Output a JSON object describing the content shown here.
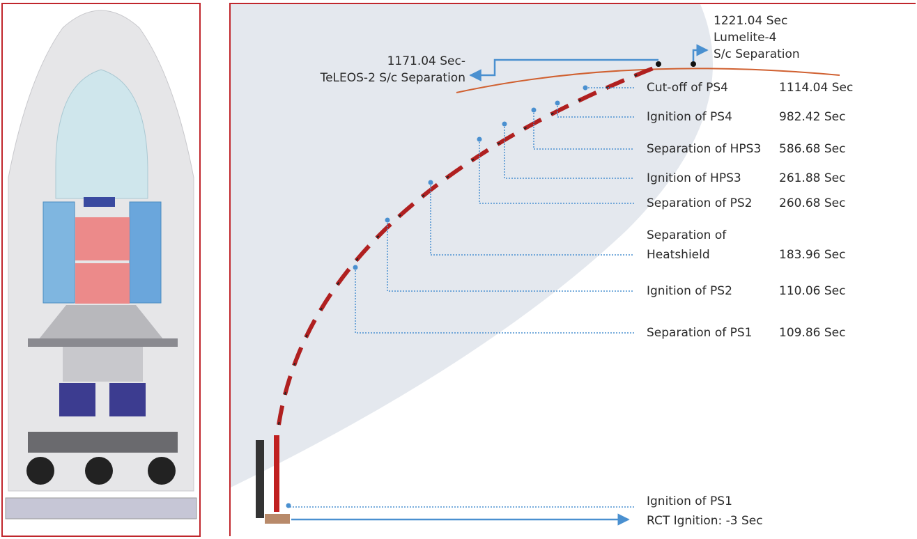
{
  "upper_callouts": [
    {
      "time": "1221.04 Sec",
      "lines": [
        "Lumelite-4",
        "S/c Separation"
      ]
    },
    {
      "time": "1171.04 Sec-",
      "lines": [
        "TeLEOS-2 S/c Separation"
      ]
    }
  ],
  "events": [
    {
      "label": [
        "Cut-off of PS4"
      ],
      "time": "1114.04 Sec"
    },
    {
      "label": [
        "Ignition of PS4"
      ],
      "time": "982.42 Sec"
    },
    {
      "label": [
        "Separation of HPS3"
      ],
      "time": "586.68 Sec"
    },
    {
      "label": [
        "Ignition of HPS3"
      ],
      "time": "261.88 Sec"
    },
    {
      "label": [
        "Separation of PS2"
      ],
      "time": "260.68 Sec"
    },
    {
      "label": [
        "Separation of",
        "Heatshield"
      ],
      "time": "183.96 Sec"
    },
    {
      "label": [
        "Ignition of PS2"
      ],
      "time": "110.06 Sec"
    },
    {
      "label": [
        "Separation of PS1"
      ],
      "time": "109.86 Sec"
    },
    {
      "label": [
        "Ignition of PS1",
        "RCT Ignition: -3 Sec"
      ]
    }
  ]
}
